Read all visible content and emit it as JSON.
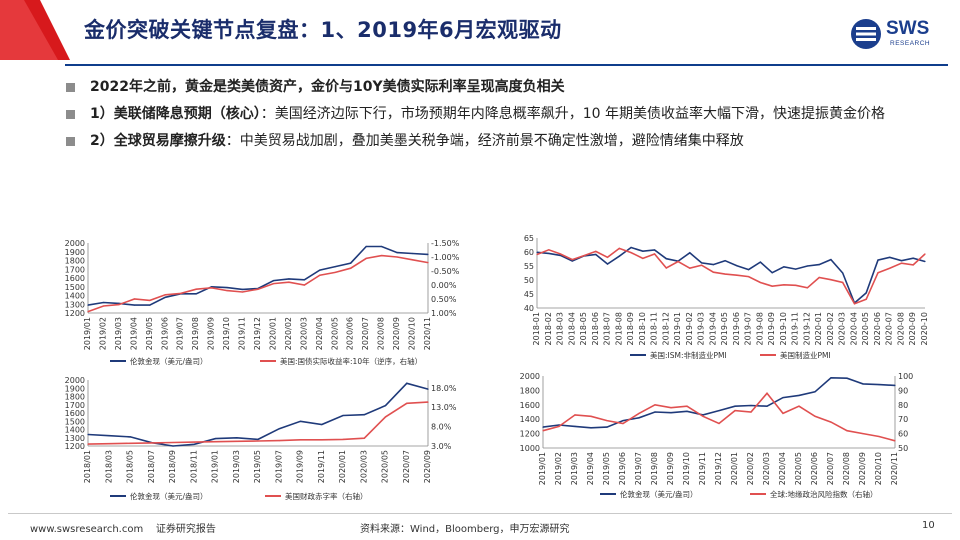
{
  "header": {
    "title": "金价突破关键节点复盘：1、2019年6月宏观驱动",
    "logo_text": "SWS",
    "logo_sub": "RESEARCH",
    "accent": "#d7191c",
    "brand": "#1b3e8d"
  },
  "bullets": [
    {
      "bold": "2022年之前，黄金是类美债资产，金价与10Y美债实际利率呈现高度负相关",
      "text": ""
    },
    {
      "bold": "1）美联储降息预期（核心）",
      "text": "：美国经济边际下行，市场预期年内降息概率飙升，10 年期美债收益率大幅下滑，快速提振黄金价格"
    },
    {
      "bold": "2）全球贸易摩擦升级",
      "text": "：中美贸易战加剧，叠加美墨关税争端，经济前景不确定性激增，避险情绪集中释放"
    }
  ],
  "footer": {
    "website": "www.swsresearch.com",
    "doc_type": "证券研究报告",
    "source": "资料来源：Wind，Bloomberg，申万宏源研究",
    "page": "10"
  },
  "chart_data": [
    {
      "type": "line",
      "title": "",
      "x": [
        "2019/01",
        "2019/02",
        "2019/03",
        "2019/04",
        "2019/05",
        "2019/06",
        "2019/07",
        "2019/08",
        "2019/09",
        "2019/10",
        "2019/11",
        "2019/12",
        "2020/01",
        "2020/02",
        "2020/03",
        "2020/04",
        "2020/05",
        "2020/06",
        "2020/07",
        "2020/08",
        "2020/09",
        "2020/10",
        "2020/11"
      ],
      "left_axis": {
        "ylim": [
          1200,
          2000
        ],
        "ticks": [
          "1200",
          "1300",
          "1400",
          "1500",
          "1600",
          "1700",
          "1800",
          "1900",
          "2000"
        ]
      },
      "right_axis": {
        "ylim": [
          1.0,
          -1.5
        ],
        "inverted": true,
        "ticks": [
          "-1.50%",
          "-1.00%",
          "-0.50%",
          "0.00%",
          "0.50%",
          "1.00%"
        ]
      },
      "series": [
        {
          "name": "伦敦金现（美元/盎司）",
          "color": "#1f3a7a",
          "axis": "left",
          "values": [
            1290,
            1320,
            1310,
            1290,
            1290,
            1380,
            1420,
            1420,
            1500,
            1490,
            1470,
            1480,
            1570,
            1590,
            1580,
            1690,
            1730,
            1770,
            1960,
            1960,
            1890,
            1880,
            1870
          ]
        },
        {
          "name": "美国:国债实际收益率:10年（逆序，右轴）",
          "color": "#e05050",
          "axis": "right",
          "values": [
            0.95,
            0.75,
            0.7,
            0.5,
            0.55,
            0.35,
            0.3,
            0.15,
            0.1,
            0.2,
            0.25,
            0.15,
            -0.05,
            -0.1,
            0.0,
            -0.35,
            -0.45,
            -0.6,
            -0.95,
            -1.05,
            -1.0,
            -0.9,
            -0.8
          ]
        }
      ]
    },
    {
      "type": "line",
      "title": "",
      "x": [
        "2018-01",
        "2018-02",
        "2018-03",
        "2018-04",
        "2018-05",
        "2018-06",
        "2018-07",
        "2018-08",
        "2018-09",
        "2018-10",
        "2018-11",
        "2018-12",
        "2019-01",
        "2019-02",
        "2019-03",
        "2019-04",
        "2019-05",
        "2019-06",
        "2019-07",
        "2019-08",
        "2019-09",
        "2019-10",
        "2019-11",
        "2019-12",
        "2020-01",
        "2020-02",
        "2020-03",
        "2020-04",
        "2020-05",
        "2020-06",
        "2020-07",
        "2020-08",
        "2020-09",
        "2020-10"
      ],
      "left_axis": {
        "ylim": [
          40,
          65
        ],
        "ticks": [
          "40",
          "45",
          "50",
          "55",
          "60",
          "65"
        ]
      },
      "series": [
        {
          "name": "美国:ISM:非制造业PMI",
          "color": "#1f3a7a",
          "values": [
            59.9,
            59.5,
            58.8,
            56.8,
            58.6,
            59.1,
            55.7,
            58.5,
            61.6,
            60.3,
            60.7,
            57.6,
            56.7,
            59.7,
            56.1,
            55.5,
            56.9,
            55.1,
            53.7,
            56.4,
            52.6,
            54.7,
            53.9,
            55.0,
            55.5,
            57.3,
            52.5,
            41.8,
            45.4,
            57.1,
            58.1,
            56.9,
            57.8,
            56.6
          ]
        },
        {
          "name": "美国制造业PMI",
          "color": "#e05050",
          "values": [
            59.1,
            60.8,
            59.3,
            57.3,
            58.7,
            60.2,
            58.1,
            61.3,
            59.8,
            57.7,
            59.3,
            54.3,
            56.6,
            54.2,
            55.3,
            52.8,
            52.1,
            51.7,
            51.2,
            49.1,
            47.8,
            48.3,
            48.1,
            47.2,
            50.9,
            50.1,
            49.1,
            41.5,
            43.1,
            52.6,
            54.2,
            56.0,
            55.4,
            59.3
          ]
        }
      ]
    },
    {
      "type": "line",
      "title": "",
      "x": [
        "2018/01",
        "2018/03",
        "2018/05",
        "2018/07",
        "2018/09",
        "2018/11",
        "2019/01",
        "2019/03",
        "2019/05",
        "2019/07",
        "2019/09",
        "2019/11",
        "2020/01",
        "2020/03",
        "2020/05",
        "2020/07",
        "2020/09"
      ],
      "left_axis": {
        "ylim": [
          1200,
          2000
        ],
        "ticks": [
          "1200",
          "1300",
          "1400",
          "1500",
          "1600",
          "1700",
          "1800",
          "1900",
          "2000"
        ]
      },
      "right_axis": {
        "ylim": [
          3.0,
          20.0
        ],
        "ticks": [
          "3.0%",
          "8.0%",
          "13.0%",
          "18.0%"
        ]
      },
      "series": [
        {
          "name": "伦敦金现（美元/盎司）",
          "color": "#1f3a7a",
          "axis": "left",
          "values": [
            1340,
            1325,
            1310,
            1240,
            1200,
            1220,
            1290,
            1300,
            1280,
            1410,
            1500,
            1460,
            1570,
            1580,
            1690,
            1960,
            1890
          ]
        },
        {
          "name": "美国财政赤字率（右轴）",
          "color": "#e05050",
          "axis": "right",
          "values": [
            3.5,
            3.6,
            3.7,
            3.8,
            3.9,
            4.0,
            4.1,
            4.2,
            4.3,
            4.4,
            4.6,
            4.6,
            4.7,
            5.0,
            10.5,
            14.0,
            14.3
          ]
        }
      ]
    },
    {
      "type": "line",
      "title": "",
      "x": [
        "2019/01",
        "2019/02",
        "2019/03",
        "2019/04",
        "2019/05",
        "2019/06",
        "2019/07",
        "2019/08",
        "2019/09",
        "2019/10",
        "2019/11",
        "2019/12",
        "2020/01",
        "2020/02",
        "2020/03",
        "2020/04",
        "2020/05",
        "2020/06",
        "2020/07",
        "2020/08",
        "2020/09",
        "2020/10",
        "2020/11"
      ],
      "left_axis": {
        "ylim": [
          1000,
          2000
        ],
        "ticks": [
          "1000",
          "1200",
          "1400",
          "1600",
          "1800",
          "2000"
        ]
      },
      "right_axis": {
        "ylim": [
          50,
          100
        ],
        "ticks": [
          "50",
          "60",
          "70",
          "80",
          "90",
          "100"
        ]
      },
      "series": [
        {
          "name": "伦敦金现（美元/盎司）",
          "color": "#1f3a7a",
          "axis": "left",
          "values": [
            1290,
            1320,
            1300,
            1280,
            1290,
            1380,
            1420,
            1500,
            1490,
            1510,
            1460,
            1520,
            1580,
            1590,
            1580,
            1700,
            1730,
            1780,
            1975,
            1970,
            1890,
            1880,
            1870
          ]
        },
        {
          "name": "全球:地缘政治风险指数（右轴）",
          "color": "#e05050",
          "axis": "right",
          "values": [
            62,
            65,
            73,
            72,
            69,
            67,
            74,
            80,
            78,
            79,
            72,
            67,
            76,
            75,
            88,
            74,
            79,
            72,
            68,
            62,
            60,
            58,
            55
          ]
        }
      ]
    }
  ]
}
